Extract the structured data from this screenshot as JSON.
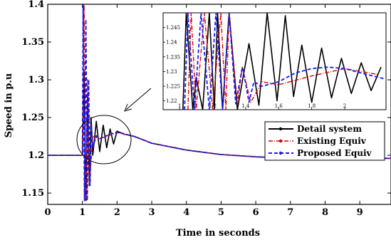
{
  "chart_data": [
    {
      "type": "line",
      "xlabel": "Time in seconds",
      "ylabel": "Speed in p.u",
      "xlim": [
        0,
        9.9
      ],
      "ylim": [
        1.135,
        1.4
      ],
      "xticks": [
        "0",
        "1",
        "2",
        "3",
        "4",
        "5",
        "6",
        "7",
        "8",
        "9"
      ],
      "yticks": [
        "1.15",
        "1.2",
        "1.25",
        "1.3",
        "1.35",
        "1.4"
      ],
      "legend_position": "lower-right",
      "series": [
        {
          "name": "Detail system",
          "color": "#000000",
          "style": "solid",
          "x": [
            0,
            1.0,
            1.05,
            1.1,
            1.15,
            1.2,
            1.25,
            1.3,
            1.4,
            1.5,
            1.6,
            1.7,
            1.8,
            1.9,
            2.0,
            2.2,
            2.5,
            3.0,
            4.0,
            5.0,
            6.0,
            7.0,
            8.0,
            9.0,
            9.9
          ],
          "y": [
            1.2,
            1.2,
            1.31,
            1.14,
            1.28,
            1.16,
            1.25,
            1.2,
            1.245,
            1.205,
            1.24,
            1.21,
            1.235,
            1.215,
            1.232,
            1.228,
            1.225,
            1.216,
            1.207,
            1.201,
            1.198,
            1.196,
            1.196,
            1.196,
            1.196
          ]
        },
        {
          "name": "Existing Equiv",
          "color": "#dd0000",
          "style": "dash-dot",
          "x": [
            0,
            1.0,
            1.05,
            1.1,
            1.15,
            1.2,
            1.3,
            1.5,
            2.0,
            2.5,
            3.0,
            4.0,
            5.0,
            6.0,
            7.0,
            8.0,
            9.0,
            9.9
          ],
          "y": [
            1.2,
            1.2,
            1.4,
            1.14,
            1.3,
            1.16,
            1.225,
            1.222,
            1.23,
            1.225,
            1.216,
            1.207,
            1.201,
            1.198,
            1.196,
            1.196,
            1.196,
            1.196
          ]
        },
        {
          "name": "Proposed Equiv",
          "color": "#1a1aee",
          "style": "dashed",
          "x": [
            0,
            1.0,
            1.02,
            1.06,
            1.1,
            1.14,
            1.18,
            1.22,
            1.26,
            1.3,
            1.4,
            1.5,
            1.7,
            2.0,
            2.5,
            3.0,
            4.0,
            5.0,
            6.0,
            7.0,
            8.0,
            9.0,
            9.9
          ],
          "y": [
            1.2,
            1.2,
            1.4,
            1.14,
            1.38,
            1.14,
            1.3,
            1.16,
            1.24,
            1.21,
            1.226,
            1.222,
            1.226,
            1.231,
            1.225,
            1.216,
            1.207,
            1.201,
            1.198,
            1.196,
            1.196,
            1.196,
            1.196
          ]
        }
      ]
    },
    {
      "type": "line",
      "inset": true,
      "xlim": [
        0.9,
        2.25
      ],
      "ylim": [
        1.217,
        1.25
      ],
      "xticks": [
        "1",
        "1.2",
        "1.4",
        "1.6",
        "1.8",
        "2"
      ],
      "yticks": [
        "1.22",
        "1.225",
        "1.23",
        "1.235",
        "1.24",
        "1.245"
      ],
      "series": [
        {
          "name": "Detail system",
          "x": [
            1.02,
            1.04,
            1.08,
            1.1,
            1.14,
            1.18,
            1.21,
            1.23,
            1.26,
            1.3,
            1.35,
            1.42,
            1.48,
            1.53,
            1.59,
            1.64,
            1.69,
            1.74,
            1.8,
            1.86,
            1.92,
            1.98,
            2.04,
            2.1,
            2.16,
            2.22
          ],
          "y": [
            1.217,
            1.25,
            1.217,
            1.228,
            1.217,
            1.25,
            1.217,
            1.25,
            1.217,
            1.25,
            1.217,
            1.2395,
            1.2185,
            1.25,
            1.22,
            1.249,
            1.2215,
            1.239,
            1.2195,
            1.238,
            1.221,
            1.2345,
            1.2225,
            1.233,
            1.2235,
            1.2315
          ]
        },
        {
          "name": "Existing Equiv",
          "x": [
            1.05,
            1.07,
            1.1,
            1.15,
            1.2,
            1.25,
            1.28,
            1.3,
            1.35,
            1.38,
            1.43,
            1.5,
            1.6,
            1.8,
            2.0,
            2.2
          ],
          "y": [
            1.217,
            1.25,
            1.217,
            1.25,
            1.217,
            1.25,
            1.217,
            1.25,
            1.219,
            1.2315,
            1.2195,
            1.2265,
            1.2255,
            1.2285,
            1.231,
            1.229
          ]
        },
        {
          "name": "Proposed Equiv",
          "x": [
            1.03,
            1.05,
            1.09,
            1.13,
            1.18,
            1.22,
            1.26,
            1.3,
            1.34,
            1.38,
            1.4,
            1.42,
            1.45,
            1.5,
            1.6,
            1.7,
            1.8,
            1.9,
            2.0,
            2.1,
            2.24
          ],
          "y": [
            1.217,
            1.25,
            1.217,
            1.25,
            1.217,
            1.25,
            1.217,
            1.25,
            1.219,
            1.2315,
            1.226,
            1.2195,
            1.2265,
            1.225,
            1.2265,
            1.2295,
            1.231,
            1.2315,
            1.231,
            1.2295,
            1.2275
          ]
        }
      ]
    }
  ]
}
